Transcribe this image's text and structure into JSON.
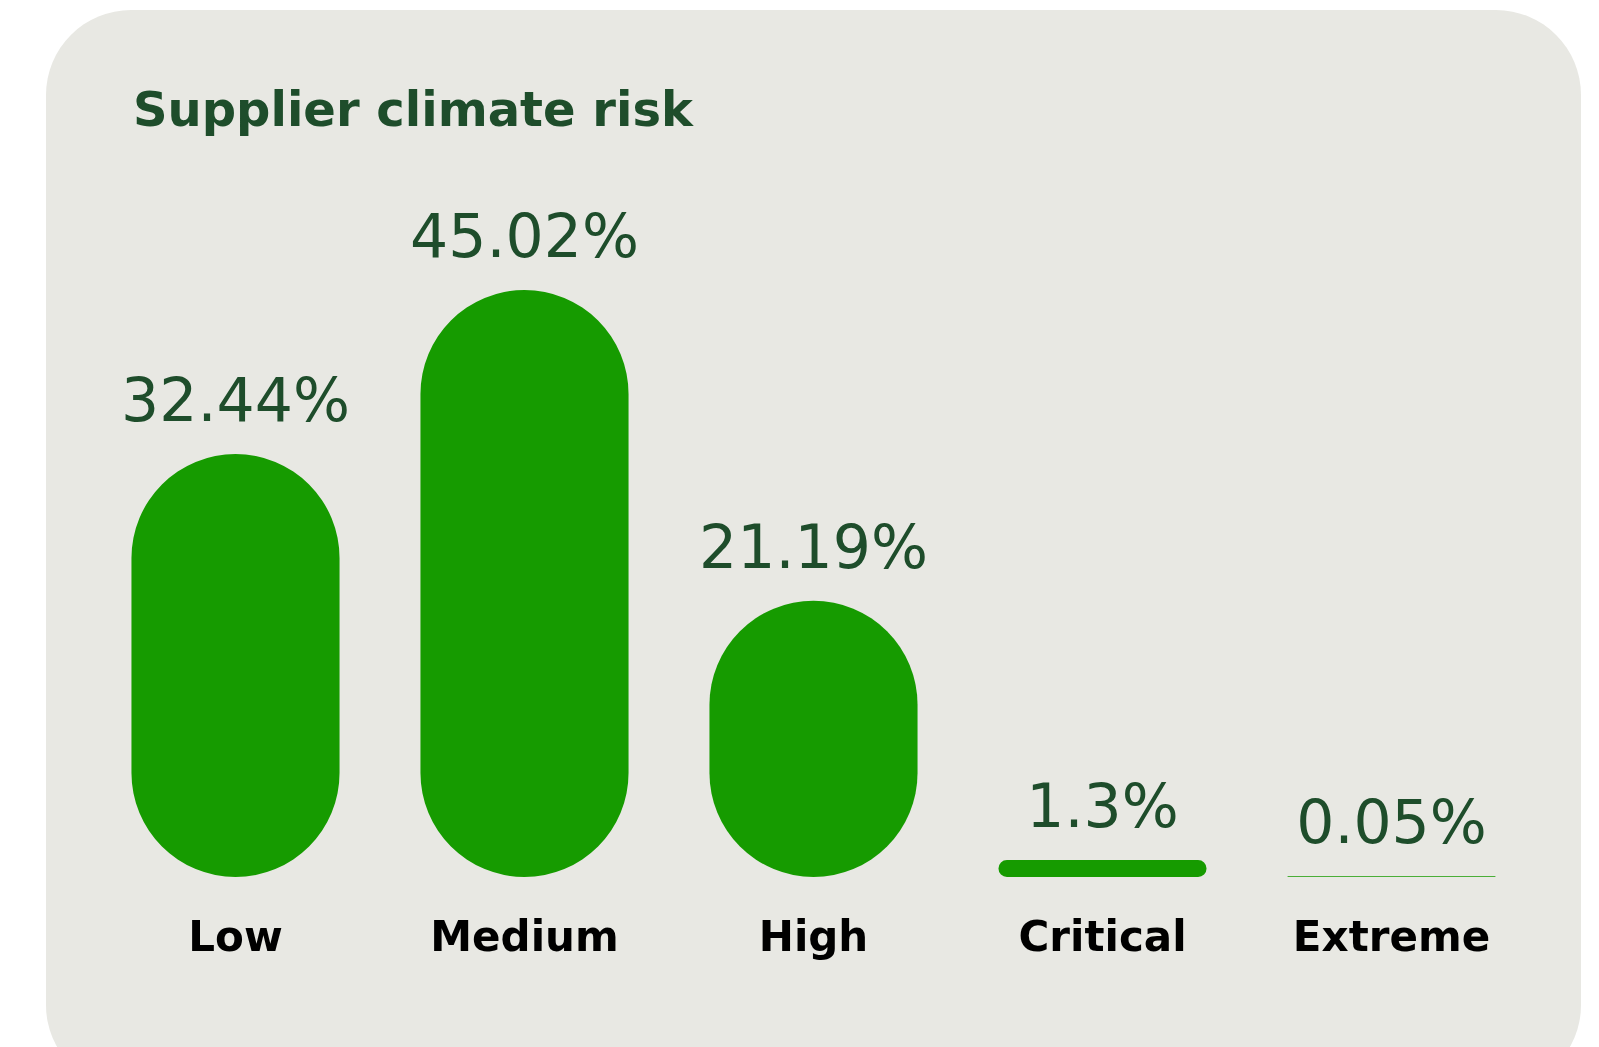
{
  "chart_data": {
    "type": "bar",
    "title": "Supplier climate risk",
    "categories": [
      "Low",
      "Medium",
      "High",
      "Critical",
      "Extreme"
    ],
    "values": [
      32.44,
      45.02,
      21.19,
      1.3,
      0.05
    ],
    "value_labels": [
      "32.44%",
      "45.02%",
      "21.19%",
      "1.3%",
      "0.05%"
    ],
    "color": "#169b00",
    "grid": false,
    "tick_labels": "x"
  }
}
